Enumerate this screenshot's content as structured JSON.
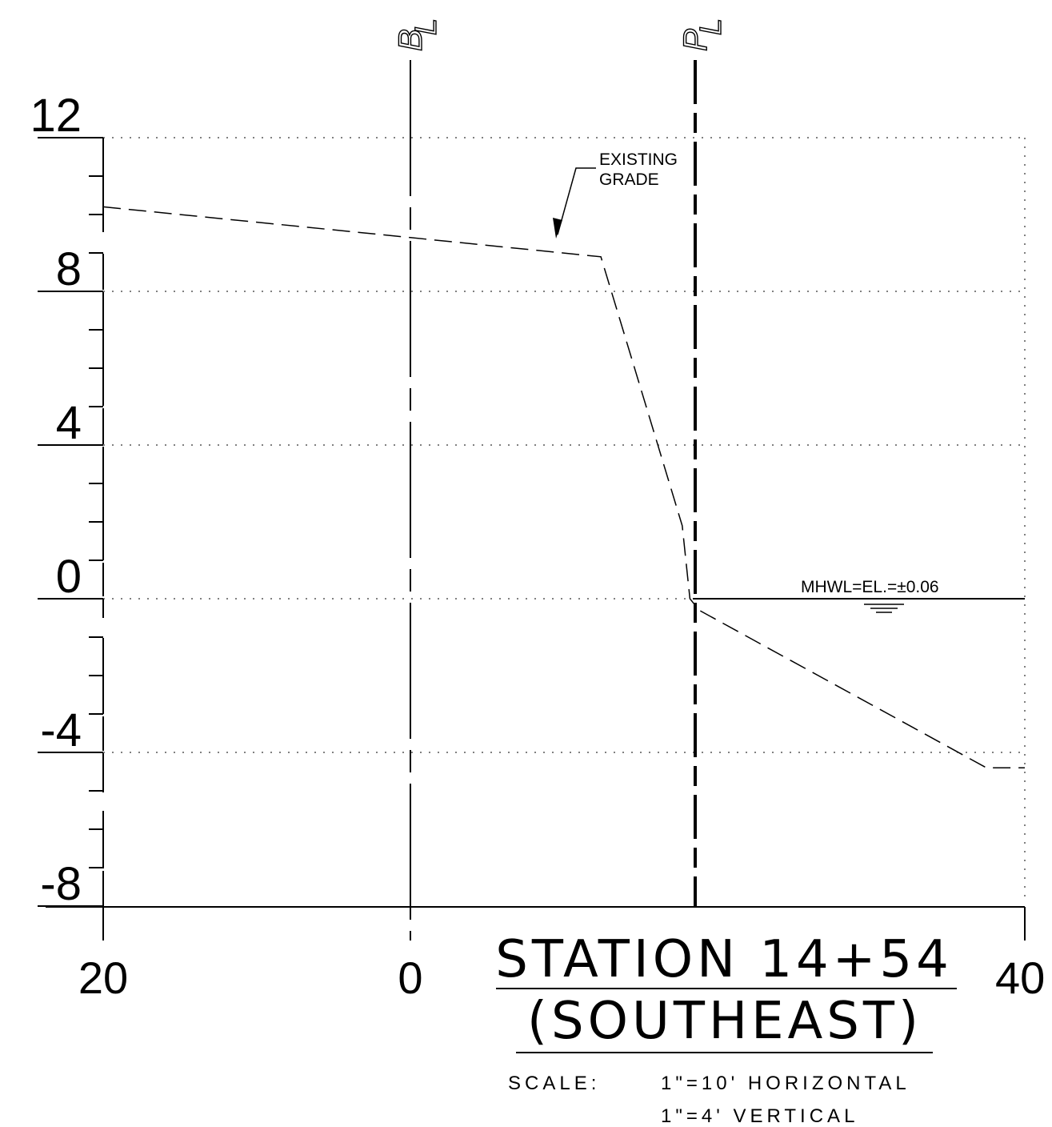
{
  "centerlines": {
    "baseline_label": "B",
    "baseline_subscript": "L",
    "property_label": "P",
    "property_subscript": "L"
  },
  "annotation": {
    "line1": "EXISTING",
    "line2": "GRADE"
  },
  "water_level": {
    "label": "MHWL=EL.=±0.06"
  },
  "title": {
    "line1": "STATION 14+54",
    "line2": "(SOUTHEAST)",
    "scale_label": "SCALE:",
    "scale_horizontal": "1\"=10' HORIZONTAL",
    "scale_vertical": "1\"=4' VERTICAL"
  },
  "chart_data": {
    "type": "line",
    "y_tick_labels": [
      "12",
      "8",
      "4",
      "0",
      "-4",
      "-8"
    ],
    "x_tick_labels": [
      "20",
      "0",
      "40"
    ],
    "ylim": [
      -8.6,
      12
    ],
    "grid": "dotted horizontal lines at 12, 8, 4, 0, -4",
    "series": [
      {
        "name": "EXISTING GRADE",
        "style": "dashed",
        "points": [
          [
            -20,
            10.2
          ],
          [
            0,
            9.4
          ],
          [
            12.4,
            8.9
          ],
          [
            17.7,
            1.9
          ],
          [
            18.2,
            0.0
          ],
          [
            18.8,
            -0.3
          ],
          [
            37.5,
            -4.4
          ],
          [
            40,
            -4.4
          ]
        ]
      }
    ],
    "reference_lines": [
      {
        "label": "MHWL",
        "elevation": 0.06
      }
    ]
  }
}
